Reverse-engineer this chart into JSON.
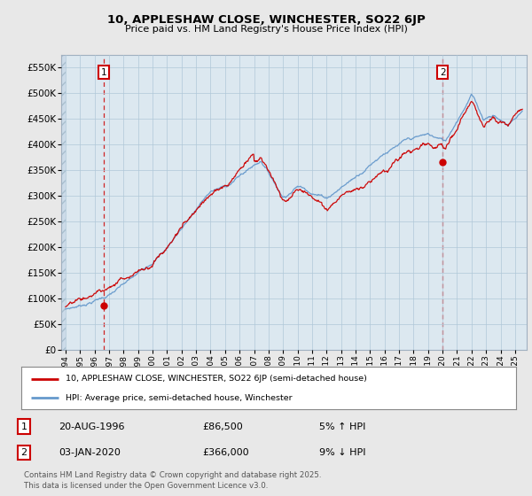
{
  "title_line1": "10, APPLESHAW CLOSE, WINCHESTER, SO22 6JP",
  "title_line2": "Price paid vs. HM Land Registry's House Price Index (HPI)",
  "ylim": [
    0,
    575000
  ],
  "yticks": [
    0,
    50000,
    100000,
    150000,
    200000,
    250000,
    300000,
    350000,
    400000,
    450000,
    500000,
    550000
  ],
  "ytick_labels": [
    "£0",
    "£50K",
    "£100K",
    "£150K",
    "£200K",
    "£250K",
    "£300K",
    "£350K",
    "£400K",
    "£450K",
    "£500K",
    "£550K"
  ],
  "xlim_start": 1993.7,
  "xlim_end": 2025.8,
  "xticks": [
    1994,
    1995,
    1996,
    1997,
    1998,
    1999,
    2000,
    2001,
    2002,
    2003,
    2004,
    2005,
    2006,
    2007,
    2008,
    2009,
    2010,
    2011,
    2012,
    2013,
    2014,
    2015,
    2016,
    2017,
    2018,
    2019,
    2020,
    2021,
    2022,
    2023,
    2024,
    2025
  ],
  "marker1_x": 1996.64,
  "marker1_y": 86500,
  "marker1_label": "1",
  "marker1_date": "20-AUG-1996",
  "marker1_price": "£86,500",
  "marker1_hpi": "5% ↑ HPI",
  "marker2_x": 2020.01,
  "marker2_y": 366000,
  "marker2_label": "2",
  "marker2_date": "03-JAN-2020",
  "marker2_price": "£366,000",
  "marker2_hpi": "9% ↓ HPI",
  "legend_label_red": "10, APPLESHAW CLOSE, WINCHESTER, SO22 6JP (semi-detached house)",
  "legend_label_blue": "HPI: Average price, semi-detached house, Winchester",
  "footer": "Contains HM Land Registry data © Crown copyright and database right 2025.\nThis data is licensed under the Open Government Licence v3.0.",
  "red_color": "#cc0000",
  "blue_color": "#6699cc",
  "bg_color": "#e8e8e8",
  "plot_bg_color": "#dce8f0",
  "grid_color": "#b0c8d8",
  "marker_box_color": "#cc0000",
  "hatch_color": "#c8d8e8"
}
